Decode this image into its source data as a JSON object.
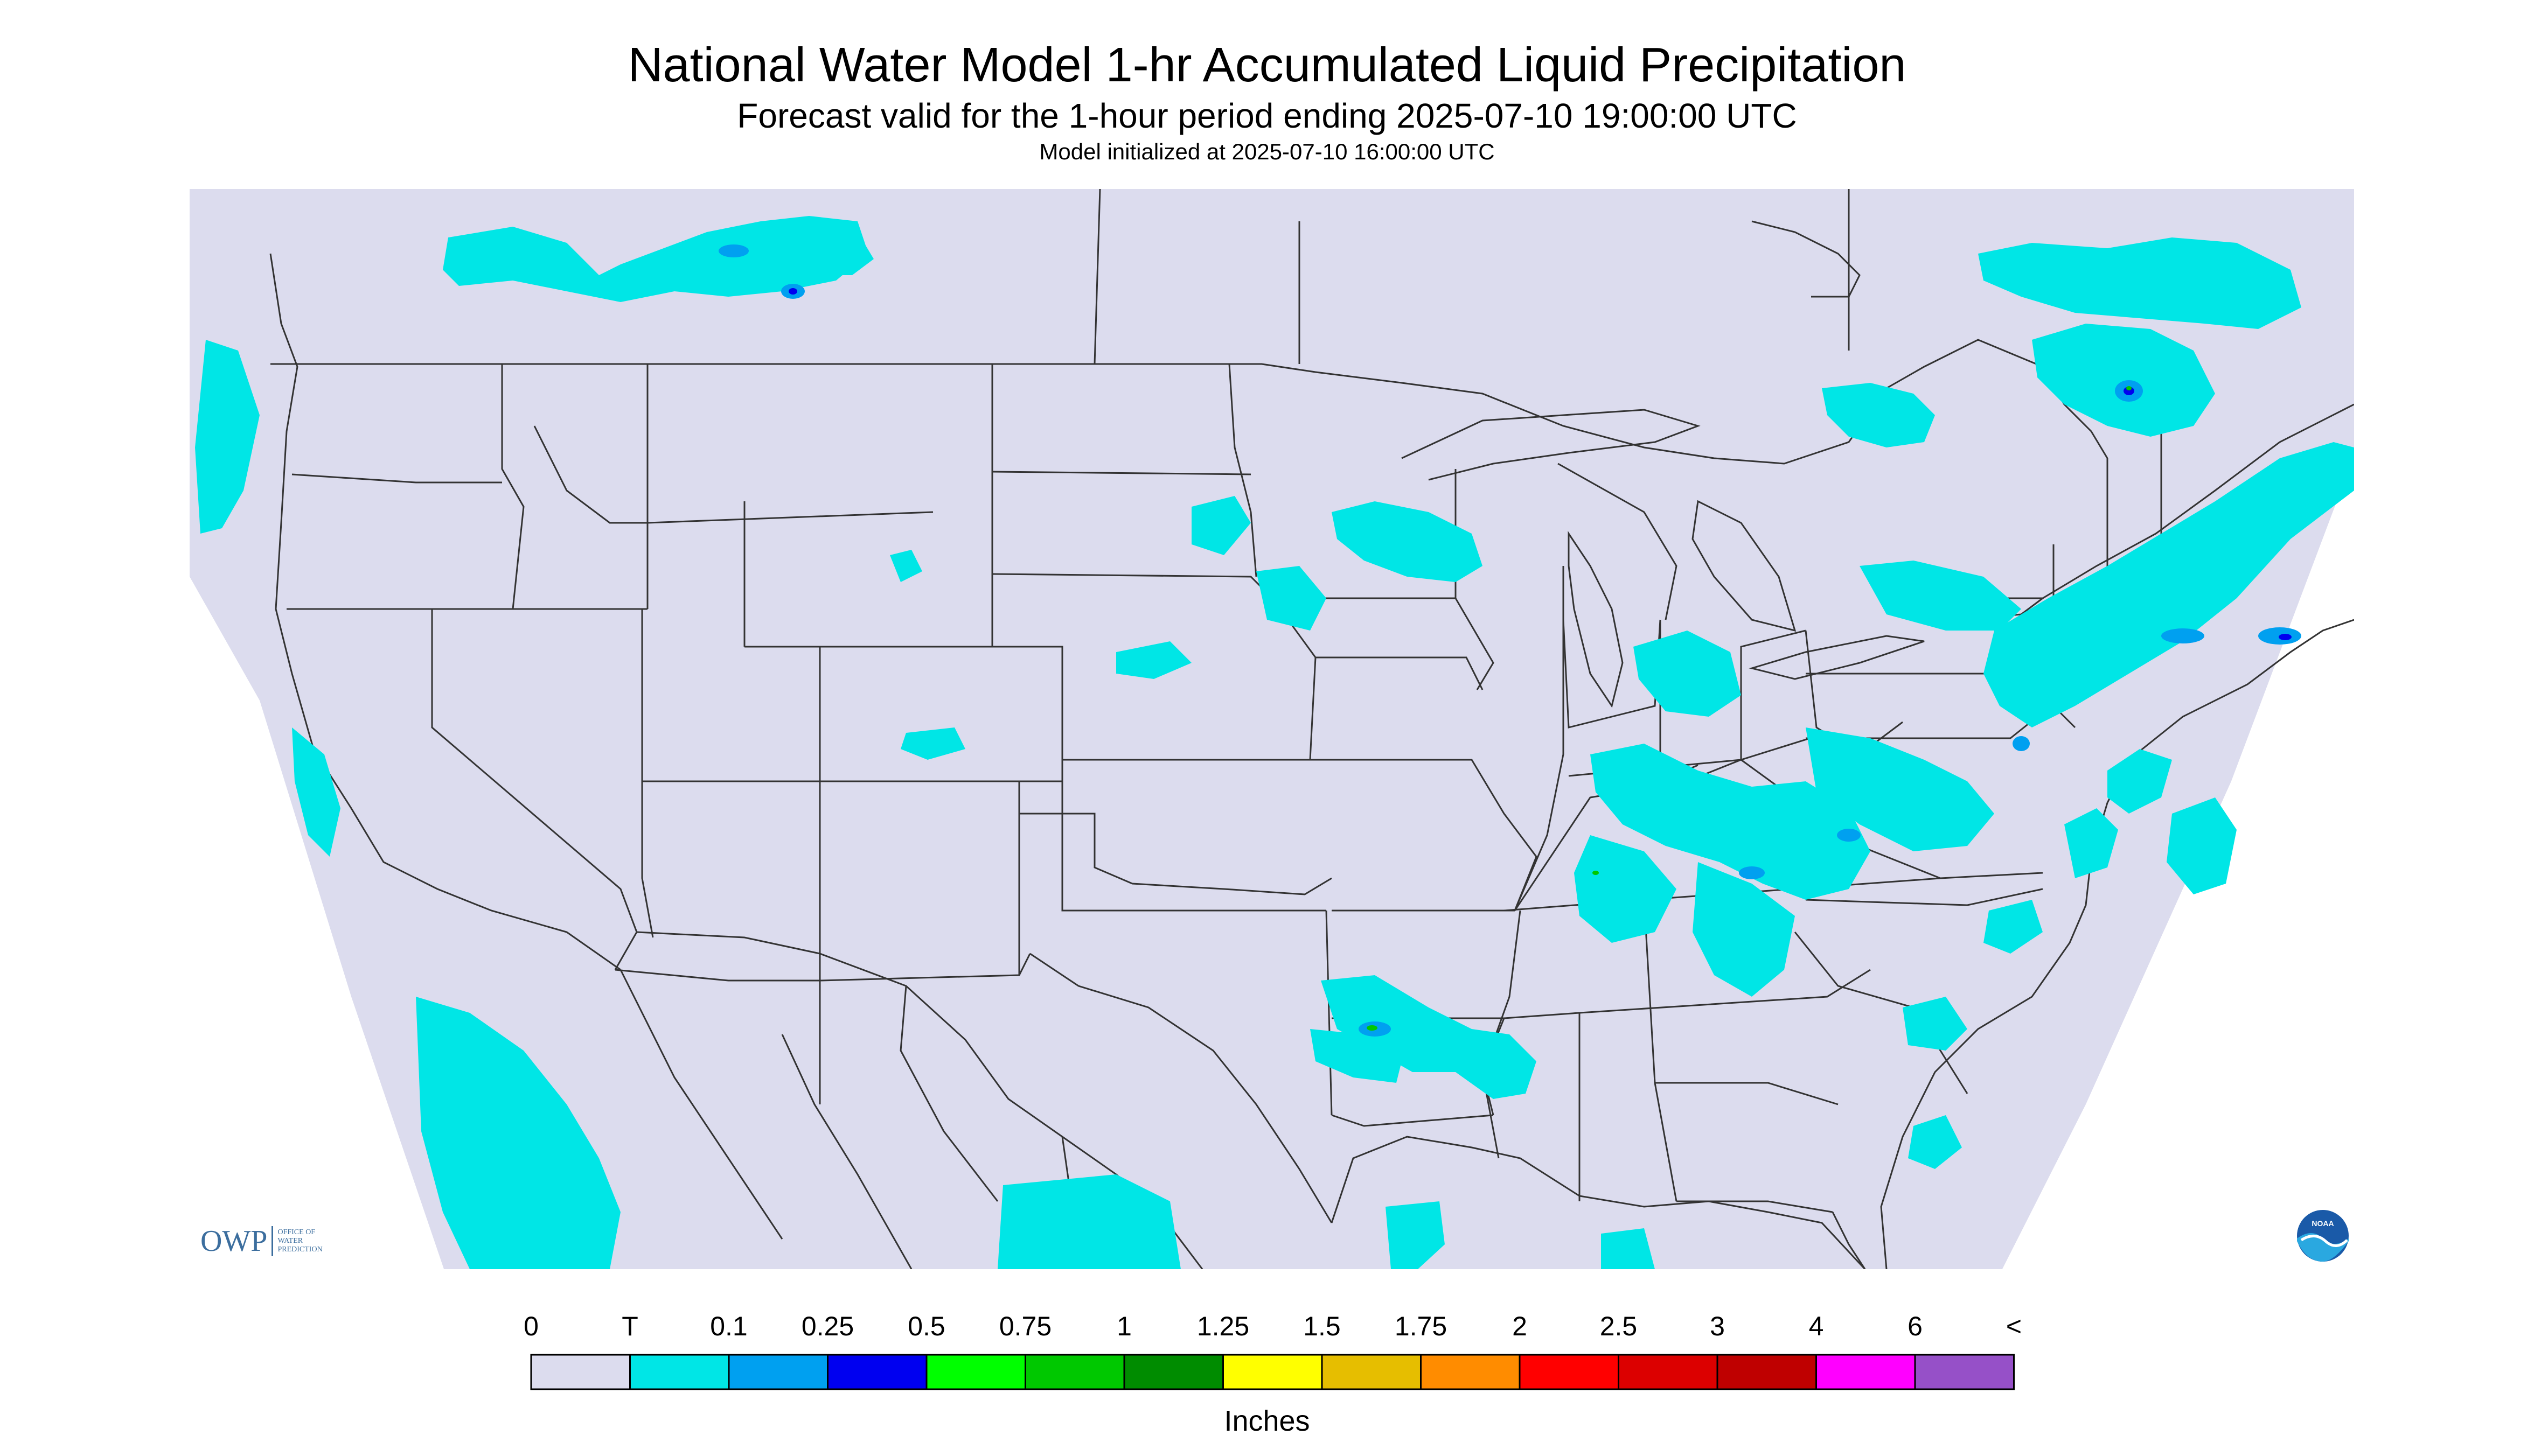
{
  "title": "National Water Model 1-hr Accumulated Liquid Precipitation",
  "subtitle": "Forecast valid for the 1-hour period ending 2025-07-10 19:00:00 UTC",
  "init_line": "Model initialized at 2025-07-10 16:00:00 UTC",
  "logo_owp": {
    "abbr": "OWP",
    "text": [
      "OFFICE OF",
      "WATER",
      "PREDICTION"
    ]
  },
  "logo_noaa": "NOAA",
  "legend": {
    "labels": [
      "0",
      "T",
      "0.1",
      "0.25",
      "0.5",
      "0.75",
      "1",
      "1.25",
      "1.5",
      "1.75",
      "2",
      "2.5",
      "3",
      "4",
      "6",
      "<"
    ],
    "colors": [
      "#dcdcee",
      "#00e6e6",
      "#00a0f0",
      "#0000f0",
      "#00ff00",
      "#00c800",
      "#008c00",
      "#ffff00",
      "#e6be00",
      "#ff8c00",
      "#ff0000",
      "#dc0000",
      "#bf0000",
      "#ff00ff",
      "#9650c8"
    ],
    "units": "Inches"
  },
  "map_colors": {
    "domain": "#dcdcee",
    "outside": "#ffffff",
    "border": "#333333",
    "light": "#00e6e6",
    "mid": "#00a0f0",
    "heavy": "#0000f0"
  }
}
